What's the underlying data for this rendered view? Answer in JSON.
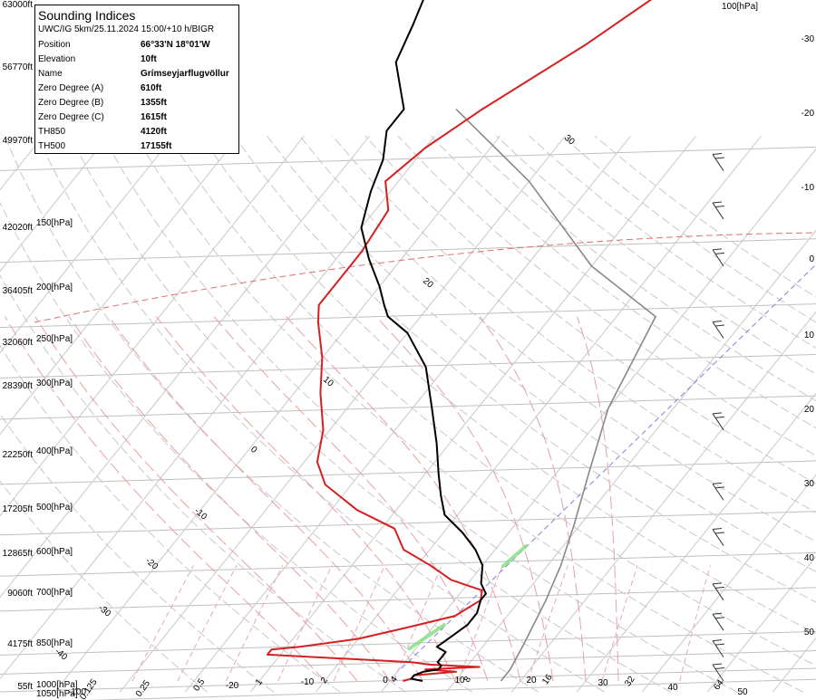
{
  "chart_data": {
    "type": "line",
    "title": "Sounding Indices",
    "subtitle": "UWC/IG 5km/25.11.2024 15:00/+10 h/BIGR",
    "indices": [
      {
        "key": "Position",
        "value": "66°33'N 18°01'W"
      },
      {
        "key": "Elevation",
        "value": "10ft"
      },
      {
        "key": "Name",
        "value": "Grímseyjarflugvöllur"
      },
      {
        "key": "Zero Degree (A)",
        "value": "610ft"
      },
      {
        "key": "Zero Degree (B)",
        "value": "1355ft"
      },
      {
        "key": "Zero Degree (C)",
        "value": "1615ft"
      },
      {
        "key": "TH850",
        "value": "4120ft"
      },
      {
        "key": "TH500",
        "value": "17155ft"
      }
    ],
    "altitude_labels": [
      "63000ft",
      "56770ft",
      "49970ft",
      "42020ft",
      "36405ft",
      "32060ft",
      "28390ft",
      "22250ft",
      "17205ft",
      "12865ft",
      "9060ft",
      "4175ft",
      "55ft"
    ],
    "pressure_labels": [
      "100[hPa]",
      "150[hPa]",
      "200[hPa]",
      "250[hPa]",
      "300[hPa]",
      "400[hPa]",
      "500[hPa]",
      "600[hPa]",
      "700[hPa]",
      "850[hPa]",
      "1000[hPa]",
      "1050[hPa]"
    ],
    "right_axis_labels": [
      "-30",
      "-20",
      "-10",
      "0",
      "10",
      "20",
      "30",
      "40",
      "50"
    ],
    "isotherm_labels": [
      "30",
      "20",
      "10",
      "0",
      "-10",
      "-20",
      "-30",
      "-40"
    ],
    "bottom_labels": [
      "0.125",
      "0.25",
      "0.5",
      "1",
      "2",
      "4",
      "8",
      "16",
      "32",
      "64",
      "-100",
      "-20",
      "-10",
      "0",
      "10",
      "20",
      "30",
      "40",
      "50"
    ],
    "dewpoint_series": [
      [
        2,
        1000
      ],
      [
        3,
        990
      ],
      [
        3,
        975
      ],
      [
        9,
        960
      ],
      [
        4,
        950
      ],
      [
        12,
        940
      ],
      [
        4,
        930
      ],
      [
        1,
        920
      ],
      [
        -22,
        890
      ],
      [
        -22,
        870
      ],
      [
        -18,
        860
      ],
      [
        -10,
        830
      ],
      [
        -4,
        790
      ],
      [
        2,
        750
      ],
      [
        4,
        700
      ],
      [
        3,
        670
      ],
      [
        -3,
        640
      ],
      [
        -8,
        600
      ],
      [
        -14,
        560
      ],
      [
        -18,
        510
      ],
      [
        -26,
        470
      ],
      [
        -34,
        420
      ],
      [
        -38,
        380
      ],
      [
        -41,
        330
      ],
      [
        -46,
        280
      ],
      [
        -50,
        240
      ],
      [
        -55,
        205
      ],
      [
        -57,
        190
      ],
      [
        -57,
        170
      ],
      [
        -57,
        150
      ],
      [
        -58,
        125
      ],
      [
        -62,
        110
      ],
      [
        -60,
        95
      ],
      [
        -56,
        80
      ],
      [
        -48,
        60
      ],
      [
        -40,
        42
      ]
    ],
    "temperature_series": [
      [
        5,
        1000
      ],
      [
        3,
        990
      ],
      [
        3,
        975
      ],
      [
        4,
        960
      ],
      [
        6,
        950
      ],
      [
        6,
        935
      ],
      [
        5,
        920
      ],
      [
        5,
        900
      ],
      [
        5,
        880
      ],
      [
        3,
        860
      ],
      [
        4,
        820
      ],
      [
        5,
        780
      ],
      [
        5,
        740
      ],
      [
        4,
        700
      ],
      [
        4,
        680
      ],
      [
        2,
        650
      ],
      [
        0,
        600
      ],
      [
        -3,
        560
      ],
      [
        -7,
        520
      ],
      [
        -12,
        480
      ],
      [
        -15,
        440
      ],
      [
        -18,
        400
      ],
      [
        -22,
        350
      ],
      [
        -27,
        300
      ],
      [
        -33,
        250
      ],
      [
        -40,
        215
      ],
      [
        -45,
        200
      ],
      [
        -47,
        190
      ],
      [
        -50,
        175
      ],
      [
        -55,
        155
      ],
      [
        -60,
        135
      ],
      [
        -63,
        115
      ],
      [
        -65,
        100
      ],
      [
        -68,
        88
      ],
      [
        -68,
        80
      ],
      [
        -75,
        65
      ],
      [
        -77,
        55
      ],
      [
        -80,
        44
      ]
    ],
    "parcel_series": [
      [
        17,
        1000
      ],
      [
        17,
        950
      ],
      [
        16,
        850
      ],
      [
        14,
        700
      ],
      [
        12,
        600
      ],
      [
        9,
        500
      ],
      [
        5,
        400
      ],
      [
        0,
        300
      ],
      [
        -4,
        200
      ],
      [
        -20,
        160
      ],
      [
        -40,
        110
      ],
      [
        -60,
        80
      ]
    ],
    "wind_barbs": [
      {
        "p": 1000,
        "speed": 25,
        "dir": 300
      },
      {
        "p": 900,
        "speed": 25,
        "dir": 300
      },
      {
        "p": 800,
        "speed": 25,
        "dir": 300
      },
      {
        "p": 700,
        "speed": 25,
        "dir": 300
      },
      {
        "p": 550,
        "speed": 25,
        "dir": 300
      },
      {
        "p": 450,
        "speed": 25,
        "dir": 300
      },
      {
        "p": 330,
        "speed": 25,
        "dir": 300
      },
      {
        "p": 220,
        "speed": 25,
        "dir": 300
      },
      {
        "p": 160,
        "speed": 25,
        "dir": 300
      },
      {
        "p": 130,
        "speed": 25,
        "dir": 300
      },
      {
        "p": 105,
        "speed": 25,
        "dir": 300
      }
    ],
    "colors": {
      "temperature": "#000000",
      "dewpoint": "#d42020",
      "parcel": "#888888",
      "isobar": "#c0c0c0",
      "isotherm": "#c8c8c8",
      "dry_adiabat": "#c8c8c8",
      "moist_adiabat": "#e8a0a0",
      "mixing_ratio": "#e4a8b8",
      "freezing_level": "#e07070",
      "lcl_line": "#8080e0",
      "cloud": "#80e080"
    }
  }
}
